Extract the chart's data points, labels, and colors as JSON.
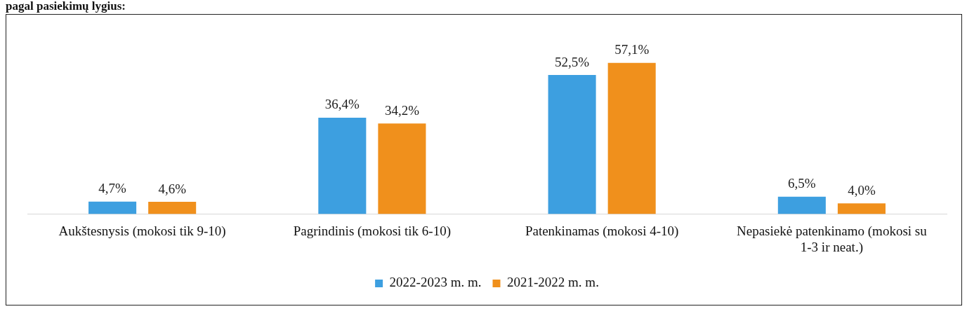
{
  "chart_data": {
    "type": "bar",
    "title": "pagal pasiekimų lygius:",
    "categories": [
      "Aukštesnysis (mokosi tik 9-10)",
      "Pagrindinis (mokosi tik 6-10)",
      "Patenkinamas (mokosi 4-10)",
      "Nepasiekė patenkinamo (mokosi su 1-3 ir neat.)"
    ],
    "series": [
      {
        "name": "2022-2023 m. m.",
        "color": "#3d9fe0",
        "values": [
          4.7,
          36.4,
          52.5,
          6.5
        ],
        "value_labels": [
          "4,7%",
          "36,4%",
          "52,5%",
          "6,5%"
        ]
      },
      {
        "name": "2021-2022 m. m.",
        "color": "#f0901c",
        "values": [
          4.6,
          34.2,
          57.1,
          4.0
        ],
        "value_labels": [
          "4,6%",
          "34,2%",
          "57,1%",
          "4,0%"
        ]
      }
    ],
    "legend": "bottom",
    "grid": false
  }
}
